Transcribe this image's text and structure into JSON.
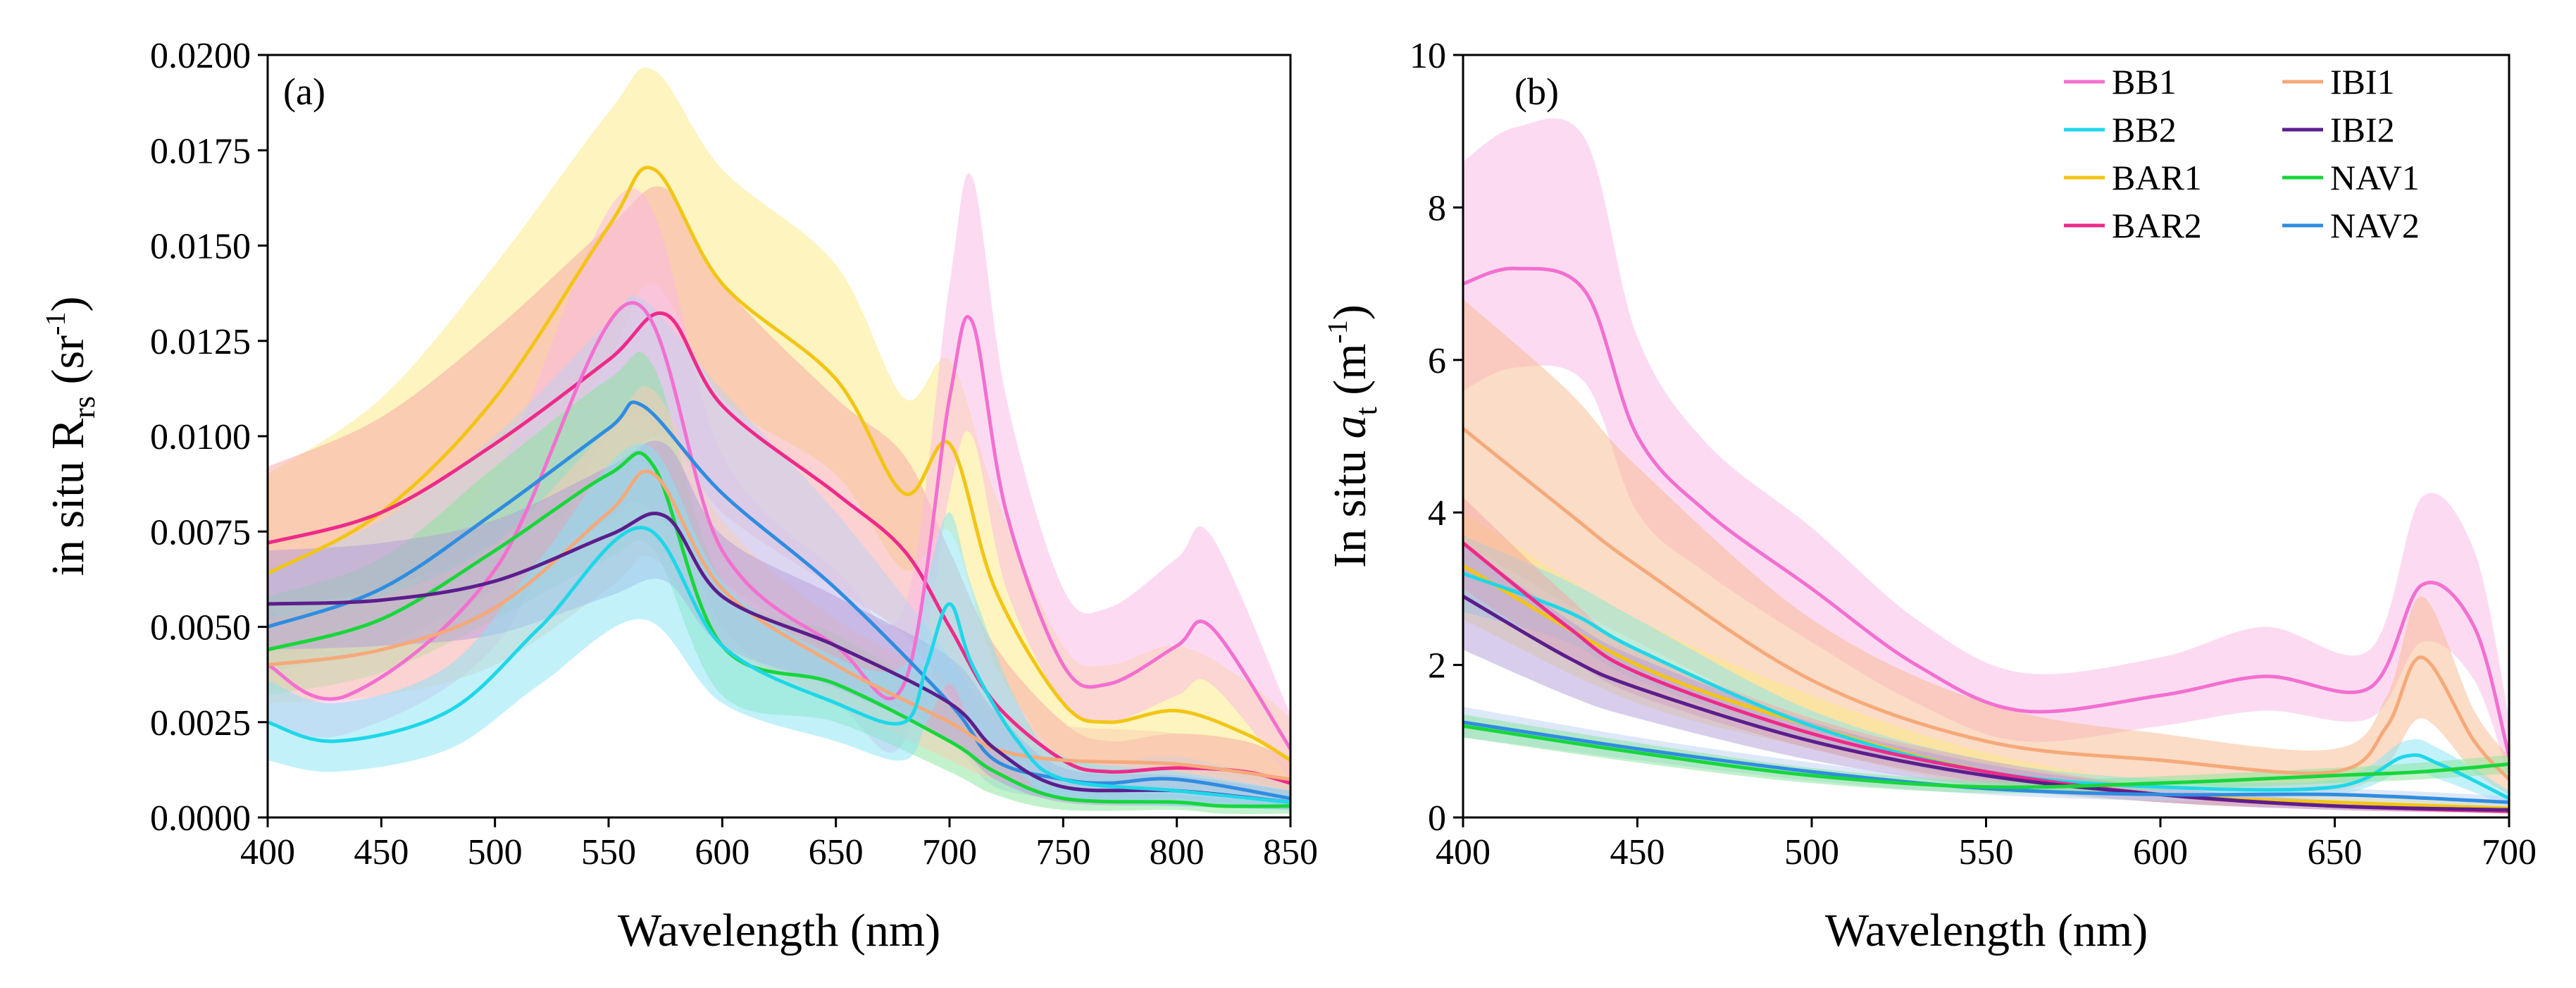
{
  "figure": {
    "panels": [
      "(a)",
      "(b)"
    ]
  },
  "chart_data": [
    {
      "type": "line",
      "panel_label": "(a)",
      "title": "",
      "xlabel": "Wavelength (nm)",
      "ylabel": {
        "prefix": "in situ R",
        "subscript": "rs",
        "unit_open": " (sr",
        "unit_sup": "-1",
        "unit_close": ")"
      },
      "xlim": [
        400,
        850
      ],
      "ylim": [
        0,
        0.02
      ],
      "xticks": [
        400,
        450,
        500,
        550,
        600,
        650,
        700,
        750,
        800,
        850
      ],
      "yticks": [
        "0.0000",
        "0.0025",
        "0.0050",
        "0.0075",
        "0.0100",
        "0.0125",
        "0.0150",
        "0.0175",
        "0.0200"
      ],
      "ytick_values": [
        0,
        0.0025,
        0.005,
        0.0075,
        0.01,
        0.0125,
        0.015,
        0.0175,
        0.02
      ],
      "grid": false,
      "shaded_band": "mean ± spread",
      "series": [
        {
          "name": "BAR1",
          "color": "#f2c515",
          "band_color": "#fce97f",
          "x": [
            400,
            450,
            500,
            550,
            570,
            600,
            650,
            680,
            700,
            720,
            750,
            770,
            800,
            830,
            850
          ],
          "mean": [
            0.0064,
            0.008,
            0.011,
            0.0155,
            0.017,
            0.014,
            0.0115,
            0.0085,
            0.0098,
            0.006,
            0.003,
            0.0025,
            0.0028,
            0.0022,
            0.0015
          ],
          "lower": [
            0.004,
            0.005,
            0.0075,
            0.012,
            0.014,
            0.011,
            0.009,
            0.0065,
            0.0075,
            0.004,
            0.0015,
            0.0012,
            0.0012,
            0.001,
            0.0006
          ],
          "upper": [
            0.009,
            0.011,
            0.0145,
            0.0185,
            0.0196,
            0.017,
            0.0145,
            0.011,
            0.012,
            0.0085,
            0.0045,
            0.004,
            0.0045,
            0.0036,
            0.0026
          ]
        },
        {
          "name": "BAR2",
          "color": "#ee2a8a",
          "band_color": "#f8a3a3",
          "x": [
            400,
            450,
            500,
            550,
            575,
            600,
            650,
            680,
            700,
            720,
            750,
            770,
            800,
            830,
            850
          ],
          "mean": [
            0.0072,
            0.008,
            0.0098,
            0.012,
            0.0132,
            0.0108,
            0.0085,
            0.007,
            0.005,
            0.003,
            0.0015,
            0.0012,
            0.0013,
            0.0012,
            0.0009
          ],
          "lower": [
            0.0055,
            0.006,
            0.0072,
            0.009,
            0.01,
            0.008,
            0.006,
            0.0048,
            0.0032,
            0.0018,
            0.0008,
            0.0006,
            0.0007,
            0.0006,
            0.0004
          ],
          "upper": [
            0.0092,
            0.0105,
            0.0128,
            0.0155,
            0.0165,
            0.014,
            0.011,
            0.0095,
            0.007,
            0.0045,
            0.0025,
            0.002,
            0.0022,
            0.002,
            0.0015
          ]
        },
        {
          "name": "BB1",
          "color": "#f36fd0",
          "band_color": "#f9b7e6",
          "x": [
            400,
            435,
            500,
            560,
            600,
            650,
            680,
            700,
            710,
            725,
            750,
            770,
            800,
            815,
            850
          ],
          "mean": [
            0.004,
            0.0032,
            0.0065,
            0.0135,
            0.007,
            0.0045,
            0.0035,
            0.011,
            0.013,
            0.008,
            0.004,
            0.0035,
            0.0045,
            0.005,
            0.0018
          ],
          "lower": [
            0.0025,
            0.0022,
            0.0045,
            0.0105,
            0.005,
            0.003,
            0.002,
            0.0085,
            0.01,
            0.006,
            0.003,
            0.0025,
            0.0032,
            0.0035,
            0.001
          ],
          "upper": [
            0.0055,
            0.0045,
            0.009,
            0.0165,
            0.0095,
            0.0065,
            0.0055,
            0.014,
            0.0168,
            0.011,
            0.006,
            0.0055,
            0.0068,
            0.0074,
            0.0027
          ]
        },
        {
          "name": "NAV2",
          "color": "#2f8de0",
          "band_color": "#bcd1f3",
          "x": [
            400,
            450,
            500,
            550,
            565,
            600,
            650,
            700,
            720,
            750,
            770,
            800,
            850
          ],
          "mean": [
            0.005,
            0.006,
            0.008,
            0.0102,
            0.0108,
            0.0085,
            0.006,
            0.003,
            0.0015,
            0.001,
            0.0009,
            0.001,
            0.0005
          ],
          "lower": [
            0.0038,
            0.0045,
            0.006,
            0.0078,
            0.0082,
            0.0062,
            0.0042,
            0.002,
            0.0008,
            0.0005,
            0.0004,
            0.0005,
            0.0002
          ],
          "upper": [
            0.0065,
            0.0078,
            0.01,
            0.013,
            0.0136,
            0.0112,
            0.008,
            0.0042,
            0.0024,
            0.0016,
            0.0014,
            0.0016,
            0.0009
          ]
        },
        {
          "name": "NAV1",
          "color": "#18d63b",
          "band_color": "#86e69a",
          "x": [
            400,
            450,
            500,
            550,
            570,
            600,
            650,
            700,
            720,
            750,
            800,
            820,
            850
          ],
          "mean": [
            0.0044,
            0.0052,
            0.007,
            0.009,
            0.0092,
            0.0045,
            0.0035,
            0.002,
            0.0012,
            0.0005,
            0.0004,
            0.0003,
            0.0003
          ],
          "lower": [
            0.0032,
            0.0038,
            0.0052,
            0.0068,
            0.007,
            0.0032,
            0.0025,
            0.0012,
            0.0006,
            0.0002,
            0.0002,
            0.0001,
            0.0001
          ],
          "upper": [
            0.0058,
            0.0068,
            0.0092,
            0.0115,
            0.0118,
            0.0062,
            0.0048,
            0.003,
            0.0018,
            0.0008,
            0.0006,
            0.0005,
            0.0004
          ]
        },
        {
          "name": "IBI1",
          "color": "#f5a97a",
          "band_color": "#f9ccb1",
          "x": [
            400,
            450,
            500,
            550,
            570,
            600,
            650,
            700,
            720,
            750,
            800,
            850
          ],
          "mean": [
            0.004,
            0.0044,
            0.0055,
            0.008,
            0.009,
            0.006,
            0.004,
            0.0025,
            0.0018,
            0.0015,
            0.0014,
            0.001
          ],
          "lower": [
            0.003,
            0.0032,
            0.004,
            0.006,
            0.0068,
            0.0045,
            0.003,
            0.0015,
            0.001,
            0.0008,
            0.0008,
            0.0005
          ],
          "upper": [
            0.0052,
            0.0058,
            0.0072,
            0.0102,
            0.0112,
            0.0078,
            0.0052,
            0.0036,
            0.0028,
            0.0024,
            0.0022,
            0.0016
          ]
        },
        {
          "name": "IBI2",
          "color": "#5b1e8c",
          "band_color": "#b39cd9",
          "x": [
            400,
            450,
            500,
            550,
            575,
            600,
            650,
            700,
            720,
            750,
            800,
            850
          ],
          "mean": [
            0.0056,
            0.0057,
            0.0062,
            0.0074,
            0.0079,
            0.0058,
            0.0045,
            0.003,
            0.0018,
            0.0008,
            0.0007,
            0.0004
          ],
          "lower": [
            0.0044,
            0.0045,
            0.0048,
            0.0058,
            0.0062,
            0.0045,
            0.0034,
            0.002,
            0.001,
            0.0004,
            0.0003,
            0.0002
          ],
          "upper": [
            0.007,
            0.0072,
            0.0078,
            0.0092,
            0.0098,
            0.0074,
            0.0058,
            0.0042,
            0.0028,
            0.0013,
            0.0011,
            0.0007
          ]
        },
        {
          "name": "BB2",
          "color": "#1ed7e8",
          "band_color": "#85e3f5",
          "x": [
            400,
            430,
            480,
            520,
            565,
            600,
            650,
            680,
            690,
            700,
            710,
            730,
            750,
            800,
            850
          ],
          "mean": [
            0.0025,
            0.002,
            0.0028,
            0.005,
            0.0076,
            0.0045,
            0.003,
            0.0025,
            0.004,
            0.0056,
            0.004,
            0.002,
            0.001,
            0.0007,
            0.0004
          ],
          "lower": [
            0.0015,
            0.0012,
            0.0018,
            0.0035,
            0.0052,
            0.003,
            0.002,
            0.0015,
            0.0025,
            0.0035,
            0.0025,
            0.0012,
            0.0005,
            0.0003,
            0.0002
          ],
          "upper": [
            0.0036,
            0.003,
            0.004,
            0.0068,
            0.0098,
            0.0062,
            0.0042,
            0.004,
            0.0062,
            0.008,
            0.006,
            0.003,
            0.0016,
            0.0012,
            0.0007
          ]
        }
      ]
    },
    {
      "type": "line",
      "panel_label": "(b)",
      "title": "",
      "xlabel": "Wavelength (nm)",
      "ylabel": {
        "prefix": "In situ ",
        "italic": "a",
        "subscript": "t",
        "unit_open": " (m",
        "unit_sup": "-1",
        "unit_close": ")"
      },
      "xlim": [
        400,
        700
      ],
      "ylim": [
        0,
        10
      ],
      "xticks": [
        400,
        450,
        500,
        550,
        600,
        650,
        700
      ],
      "yticks": [
        "0",
        "2",
        "4",
        "6",
        "8",
        "10"
      ],
      "ytick_values": [
        0,
        2,
        4,
        6,
        8,
        10
      ],
      "grid": false,
      "legend": {
        "placement": "top-right",
        "columns": 2,
        "entries": [
          "BB1",
          "BB2",
          "BAR1",
          "BAR2",
          "IBI1",
          "IBI2",
          "NAV1",
          "NAV2"
        ]
      },
      "series": [
        {
          "name": "BB1",
          "color": "#f36fd0",
          "band_color": "#f9b7e6",
          "x": [
            400,
            415,
            435,
            450,
            470,
            500,
            530,
            560,
            600,
            630,
            660,
            675,
            690,
            700
          ],
          "mean": [
            7.0,
            7.2,
            6.9,
            5.0,
            4.0,
            3.0,
            2.0,
            1.4,
            1.6,
            1.85,
            1.7,
            3.05,
            2.5,
            0.8
          ],
          "lower": [
            5.6,
            5.9,
            5.7,
            4.0,
            3.2,
            2.3,
            1.5,
            1.0,
            1.2,
            1.4,
            1.3,
            2.3,
            1.8,
            0.5
          ],
          "upper": [
            8.6,
            9.05,
            8.9,
            6.3,
            4.9,
            3.8,
            2.6,
            1.9,
            2.1,
            2.5,
            2.2,
            4.2,
            3.5,
            1.3
          ]
        },
        {
          "name": "IBI1",
          "color": "#f5a97a",
          "band_color": "#f7b98e",
          "x": [
            400,
            430,
            450,
            500,
            550,
            600,
            650,
            665,
            675,
            690,
            700
          ],
          "mean": [
            5.1,
            4.0,
            3.3,
            1.8,
            1.0,
            0.75,
            0.6,
            1.2,
            2.1,
            1.0,
            0.5
          ],
          "lower": [
            3.6,
            2.8,
            2.3,
            1.2,
            0.6,
            0.45,
            0.35,
            0.7,
            1.3,
            0.6,
            0.3
          ],
          "upper": [
            6.8,
            5.6,
            4.6,
            2.6,
            1.5,
            1.1,
            0.9,
            1.6,
            2.9,
            1.4,
            0.8
          ]
        },
        {
          "name": "BAR1",
          "color": "#f2c515",
          "band_color": "#fce97f",
          "x": [
            400,
            450,
            500,
            550,
            600,
            650,
            700
          ],
          "mean": [
            3.3,
            2.0,
            1.2,
            0.6,
            0.3,
            0.2,
            0.12
          ],
          "lower": [
            2.6,
            1.5,
            0.9,
            0.4,
            0.2,
            0.12,
            0.06
          ],
          "upper": [
            4.0,
            2.6,
            1.6,
            0.85,
            0.45,
            0.3,
            0.2
          ]
        },
        {
          "name": "BB2",
          "color": "#1ed7e8",
          "band_color": "#85e3f5",
          "x": [
            400,
            430,
            450,
            500,
            550,
            600,
            650,
            670,
            680,
            700
          ],
          "mean": [
            3.2,
            2.7,
            2.2,
            1.2,
            0.6,
            0.4,
            0.4,
            0.8,
            0.7,
            0.25
          ],
          "lower": [
            2.7,
            2.3,
            1.8,
            1.0,
            0.5,
            0.3,
            0.3,
            0.6,
            0.5,
            0.15
          ],
          "upper": [
            3.7,
            3.1,
            2.6,
            1.4,
            0.75,
            0.5,
            0.5,
            1.0,
            0.9,
            0.35
          ]
        },
        {
          "name": "BAR2",
          "color": "#ee2a8a",
          "band_color": "#f8a3a3",
          "x": [
            400,
            430,
            450,
            500,
            550,
            600,
            650,
            700
          ],
          "mean": [
            3.6,
            2.5,
            1.9,
            1.1,
            0.6,
            0.3,
            0.15,
            0.08
          ],
          "lower": [
            3.0,
            2.1,
            1.6,
            0.9,
            0.45,
            0.2,
            0.1,
            0.05
          ],
          "upper": [
            4.2,
            2.9,
            2.2,
            1.3,
            0.75,
            0.4,
            0.22,
            0.12
          ]
        },
        {
          "name": "IBI2",
          "color": "#5b1e8c",
          "band_color": "#b39cd9",
          "x": [
            400,
            430,
            450,
            500,
            550,
            600,
            650,
            700
          ],
          "mean": [
            2.9,
            2.1,
            1.7,
            1.0,
            0.55,
            0.3,
            0.15,
            0.1
          ],
          "lower": [
            2.2,
            1.6,
            1.3,
            0.75,
            0.4,
            0.2,
            0.1,
            0.06
          ],
          "upper": [
            3.6,
            2.6,
            2.1,
            1.25,
            0.7,
            0.4,
            0.22,
            0.14
          ]
        },
        {
          "name": "NAV2",
          "color": "#2f8de0",
          "band_color": "#bcd1f3",
          "x": [
            400,
            450,
            500,
            550,
            600,
            650,
            700
          ],
          "mean": [
            1.25,
            0.9,
            0.6,
            0.38,
            0.3,
            0.3,
            0.2
          ],
          "lower": [
            1.05,
            0.75,
            0.48,
            0.3,
            0.22,
            0.22,
            0.14
          ],
          "upper": [
            1.45,
            1.05,
            0.72,
            0.46,
            0.38,
            0.38,
            0.28
          ]
        },
        {
          "name": "NAV1",
          "color": "#18d63b",
          "band_color": "#86e69a",
          "x": [
            400,
            450,
            500,
            550,
            600,
            650,
            675,
            700
          ],
          "mean": [
            1.2,
            0.85,
            0.55,
            0.4,
            0.45,
            0.55,
            0.6,
            0.7
          ],
          "lower": [
            1.05,
            0.72,
            0.45,
            0.32,
            0.36,
            0.45,
            0.5,
            0.58
          ],
          "upper": [
            1.35,
            0.98,
            0.65,
            0.48,
            0.54,
            0.65,
            0.72,
            0.82
          ]
        }
      ]
    }
  ]
}
